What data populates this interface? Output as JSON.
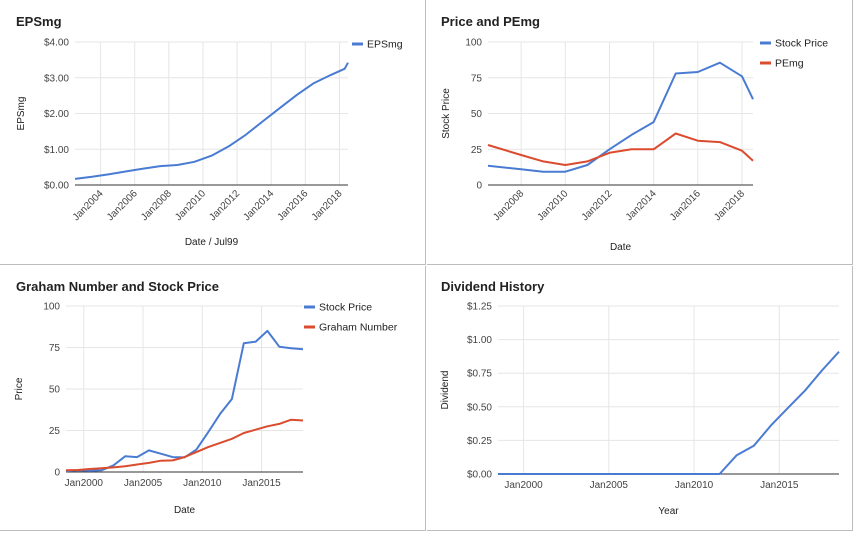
{
  "colors": {
    "blue": "#4a7bd3",
    "red": "#db4b2e",
    "grid": "#e6e6e6"
  },
  "chart_data": [
    {
      "id": "eps",
      "type": "line",
      "title": "EPSmg",
      "xlabel": "Date / Jul99",
      "ylabel": "EPSmg",
      "xlim": [
        2002.5,
        2018.5
      ],
      "ylim": [
        0,
        4
      ],
      "yticks": [
        0,
        1,
        2,
        3,
        4
      ],
      "ytick_labels": [
        "$0.00",
        "$1.00",
        "$2.00",
        "$3.00",
        "$4.00"
      ],
      "xticks": [
        2004,
        2006,
        2008,
        2010,
        2012,
        2014,
        2016,
        2018
      ],
      "xtick_labels": [
        "Jan2004",
        "Jan2006",
        "Jan2008",
        "Jan2010",
        "Jan2012",
        "Jan2014",
        "Jan2016",
        "Jan2018"
      ],
      "x_tick_rotation": -45,
      "legend_position": "top-right",
      "series": [
        {
          "name": "EPSmg",
          "color": "#4a7bd3",
          "x": [
            2002.5,
            2003.5,
            2004.5,
            2005.5,
            2006.5,
            2007.5,
            2008.5,
            2009.5,
            2010.5,
            2011.5,
            2012.5,
            2013.5,
            2014.5,
            2015.5,
            2016.5,
            2017.5,
            2018.3,
            2018.5
          ],
          "y": [
            0.17,
            0.23,
            0.3,
            0.38,
            0.46,
            0.53,
            0.56,
            0.65,
            0.82,
            1.08,
            1.4,
            1.78,
            2.15,
            2.52,
            2.85,
            3.08,
            3.25,
            3.42
          ]
        }
      ]
    },
    {
      "id": "price-pe",
      "type": "line",
      "title": "Price and PEmg",
      "xlabel": "Date",
      "ylabel": "Stock Price",
      "xlim": [
        2006.5,
        2018.5
      ],
      "ylim": [
        0,
        100
      ],
      "yticks": [
        0,
        25,
        50,
        75,
        100
      ],
      "ytick_labels": [
        "0",
        "25",
        "50",
        "75",
        "100"
      ],
      "xticks": [
        2008,
        2010,
        2012,
        2014,
        2016,
        2018
      ],
      "xtick_labels": [
        "Jan2008",
        "Jan2010",
        "Jan2012",
        "Jan2014",
        "Jan2016",
        "Jan2018"
      ],
      "x_tick_rotation": -45,
      "legend_position": "top-right",
      "series": [
        {
          "name": "Stock Price",
          "color": "#4a7bd3",
          "x": [
            2006.5,
            2008,
            2009,
            2010,
            2011,
            2012,
            2013,
            2014,
            2015,
            2016,
            2017,
            2018,
            2018.5
          ],
          "y": [
            13.5,
            11,
            9.2,
            9.3,
            14,
            25,
            35,
            44,
            78,
            79,
            85.5,
            76,
            60
          ]
        },
        {
          "name": "PEmg",
          "color": "#db4b2e",
          "x": [
            2006.5,
            2008,
            2009,
            2010,
            2011,
            2012,
            2013,
            2014,
            2015,
            2016,
            2017,
            2018,
            2018.5
          ],
          "y": [
            28,
            21,
            16.5,
            14,
            16.5,
            22.5,
            25,
            25,
            36,
            31,
            30,
            24,
            17
          ]
        }
      ]
    },
    {
      "id": "graham",
      "type": "line",
      "title": "Graham Number and Stock Price",
      "xlabel": "Date",
      "ylabel": "Price",
      "xlim": [
        1998.5,
        2018.5
      ],
      "ylim": [
        0,
        100
      ],
      "yticks": [
        0,
        25,
        50,
        75,
        100
      ],
      "ytick_labels": [
        "0",
        "25",
        "50",
        "75",
        "100"
      ],
      "xticks": [
        2000,
        2005,
        2010,
        2015
      ],
      "xtick_labels": [
        "Jan2000",
        "Jan2005",
        "Jan2010",
        "Jan2015"
      ],
      "x_tick_rotation": 0,
      "legend_position": "top-right",
      "series": [
        {
          "name": "Stock Price",
          "color": "#4a7bd3",
          "x": [
            1998.5,
            1999.5,
            2000.5,
            2001.5,
            2002.5,
            2003.5,
            2004.5,
            2005.5,
            2006.5,
            2007.5,
            2008.5,
            2009.5,
            2010.5,
            2011.5,
            2012.5,
            2013.5,
            2014.5,
            2015.5,
            2016.5,
            2017.5,
            2018.5
          ],
          "y": [
            0.5,
            1,
            0.8,
            1,
            4,
            9.5,
            9,
            13,
            11,
            9,
            8.8,
            13.5,
            24,
            35,
            44,
            77.5,
            78.5,
            85,
            75.5,
            74.5,
            74
          ]
        },
        {
          "name": "Graham Number",
          "color": "#db4b2e",
          "x": [
            1998.5,
            1999.5,
            2000.5,
            2001.5,
            2002.5,
            2003.5,
            2004.5,
            2005.5,
            2006.5,
            2007.5,
            2008.5,
            2009.5,
            2010.5,
            2011.5,
            2012.5,
            2013.5,
            2014.5,
            2015.5,
            2016.5,
            2017.5,
            2018.5
          ],
          "y": [
            1,
            1.2,
            1.8,
            2.2,
            2.8,
            3.5,
            4.5,
            5.5,
            6.8,
            7,
            9,
            12,
            15,
            17.5,
            20,
            23.5,
            25.5,
            27.5,
            29,
            31.5,
            31
          ]
        }
      ]
    },
    {
      "id": "dividend",
      "type": "line",
      "title": "Dividend History",
      "xlabel": "Year",
      "ylabel": "Dividend",
      "xlim": [
        1998.5,
        2018.5
      ],
      "ylim": [
        0,
        1.25
      ],
      "yticks": [
        0,
        0.25,
        0.5,
        0.75,
        1.0,
        1.25
      ],
      "ytick_labels": [
        "$0.00",
        "$0.25",
        "$0.50",
        "$0.75",
        "$1.00",
        "$1.25"
      ],
      "xticks": [
        2000,
        2005,
        2010,
        2015
      ],
      "xtick_labels": [
        "Jan2000",
        "Jan2005",
        "Jan2010",
        "Jan2015"
      ],
      "x_tick_rotation": 0,
      "legend_position": "none",
      "series": [
        {
          "color": "#4a7bd3",
          "x": [
            1998.5,
            2010.5,
            2011.5,
            2012.5,
            2013.5,
            2014.5,
            2015.5,
            2016.5,
            2017.5,
            2018.5
          ],
          "y": [
            0,
            0,
            0,
            0.14,
            0.21,
            0.36,
            0.49,
            0.62,
            0.77,
            0.91
          ]
        }
      ]
    }
  ]
}
